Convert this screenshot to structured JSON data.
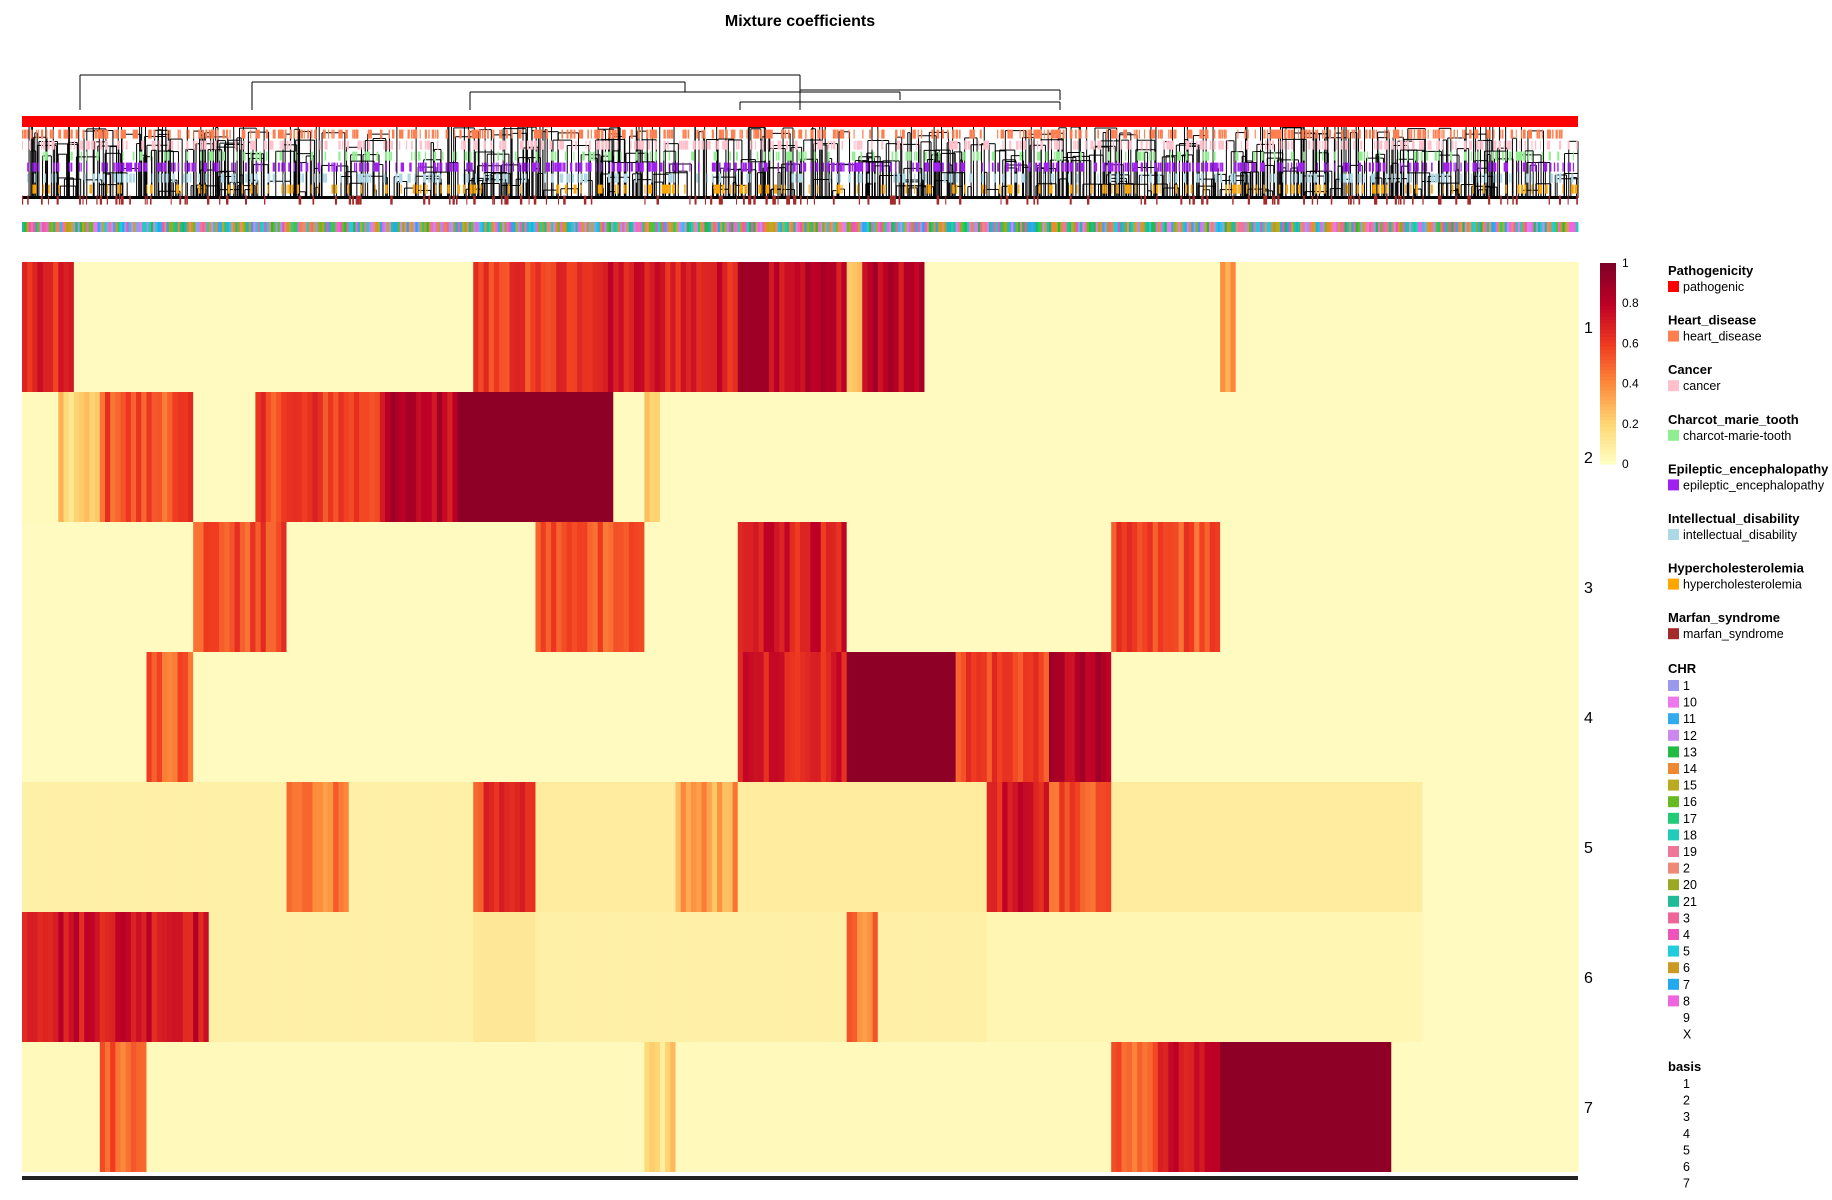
{
  "chart_data": {
    "type": "heatmap",
    "title": "Mixture coefficients",
    "colorscale": {
      "min": 0,
      "max": 1,
      "ticks": [
        "0",
        "0.2",
        "0.4",
        "0.6",
        "0.8",
        "1"
      ],
      "colors": [
        "#ffffc8",
        "#fed976",
        "#fd8d3c",
        "#f03b20",
        "#bd0026",
        "#800026"
      ]
    },
    "rows": [
      "1",
      "2",
      "3",
      "4",
      "5",
      "6",
      "7"
    ],
    "row_profiles": [
      [
        [
          0.0,
          0.035,
          0.65
        ],
        [
          0.035,
          0.9,
          0.02
        ],
        [
          0.29,
          0.36,
          0.6
        ],
        [
          0.36,
          0.46,
          0.7
        ],
        [
          0.46,
          0.48,
          0.9
        ],
        [
          0.48,
          0.58,
          0.8
        ],
        [
          0.53,
          0.54,
          0.25
        ],
        [
          0.58,
          0.9,
          0.02
        ],
        [
          0.77,
          0.78,
          0.35
        ]
      ],
      [
        [
          0.0,
          0.025,
          0.03
        ],
        [
          0.025,
          0.05,
          0.2
        ],
        [
          0.05,
          0.11,
          0.55
        ],
        [
          0.11,
          0.15,
          0.02
        ],
        [
          0.15,
          0.23,
          0.6
        ],
        [
          0.23,
          0.28,
          0.8
        ],
        [
          0.28,
          0.38,
          0.95
        ],
        [
          0.38,
          0.42,
          0.02
        ],
        [
          0.4,
          0.41,
          0.3
        ],
        [
          0.42,
          0.9,
          0.02
        ]
      ],
      [
        [
          0.0,
          0.11,
          0.02
        ],
        [
          0.11,
          0.17,
          0.55
        ],
        [
          0.17,
          0.3,
          0.02
        ],
        [
          0.33,
          0.4,
          0.55
        ],
        [
          0.4,
          0.46,
          0.02
        ],
        [
          0.46,
          0.53,
          0.7
        ],
        [
          0.53,
          0.7,
          0.02
        ],
        [
          0.7,
          0.77,
          0.55
        ],
        [
          0.77,
          0.9,
          0.02
        ]
      ],
      [
        [
          0.0,
          0.08,
          0.02
        ],
        [
          0.08,
          0.11,
          0.5
        ],
        [
          0.11,
          0.46,
          0.02
        ],
        [
          0.46,
          0.53,
          0.7
        ],
        [
          0.53,
          0.6,
          0.95
        ],
        [
          0.6,
          0.66,
          0.6
        ],
        [
          0.66,
          0.7,
          0.8
        ],
        [
          0.7,
          0.9,
          0.02
        ]
      ],
      [
        [
          0.0,
          0.17,
          0.08
        ],
        [
          0.17,
          0.21,
          0.45
        ],
        [
          0.21,
          0.29,
          0.08
        ],
        [
          0.29,
          0.33,
          0.6
        ],
        [
          0.33,
          0.42,
          0.1
        ],
        [
          0.42,
          0.46,
          0.35
        ],
        [
          0.46,
          0.62,
          0.1
        ],
        [
          0.62,
          0.66,
          0.7
        ],
        [
          0.66,
          0.7,
          0.55
        ],
        [
          0.7,
          0.9,
          0.1
        ]
      ],
      [
        [
          0.0,
          0.12,
          0.75
        ],
        [
          0.12,
          0.29,
          0.08
        ],
        [
          0.29,
          0.33,
          0.12
        ],
        [
          0.33,
          0.62,
          0.08
        ],
        [
          0.53,
          0.55,
          0.45
        ],
        [
          0.62,
          0.9,
          0.05
        ]
      ],
      [
        [
          0.0,
          0.05,
          0.03
        ],
        [
          0.05,
          0.08,
          0.5
        ],
        [
          0.08,
          0.4,
          0.03
        ],
        [
          0.4,
          0.42,
          0.2
        ],
        [
          0.42,
          0.7,
          0.03
        ],
        [
          0.7,
          0.73,
          0.5
        ],
        [
          0.73,
          0.77,
          0.7
        ],
        [
          0.77,
          0.88,
          0.95
        ]
      ]
    ],
    "annotation_tracks": [
      {
        "name": "Pathogenicity",
        "color": "#ff0000",
        "density": 1.0
      },
      {
        "name": "Heart_disease",
        "color": "#ff7f50",
        "density": 0.45
      },
      {
        "name": "Cancer",
        "color": "#ffc0cb",
        "density": 0.3
      },
      {
        "name": "Charcot_marie_tooth",
        "color": "#90ee90",
        "density": 0.2
      },
      {
        "name": "Epileptic_encephalopathy",
        "color": "#a020f0",
        "density": 0.4
      },
      {
        "name": "Intellectual_disability",
        "color": "#add8e6",
        "density": 0.25
      },
      {
        "name": "Hypercholesterolemia",
        "color": "#ffa500",
        "density": 0.2
      },
      {
        "name": "Marfan_syndrome",
        "color": "#a52a2a",
        "density": 0.15
      }
    ],
    "legends": [
      {
        "title": "Pathogenicity",
        "items": [
          {
            "label": "pathogenic",
            "color": "#ff0000"
          }
        ]
      },
      {
        "title": "Heart_disease",
        "items": [
          {
            "label": "heart_disease",
            "color": "#ff7f50"
          }
        ]
      },
      {
        "title": "Cancer",
        "items": [
          {
            "label": "cancer",
            "color": "#ffc0cb"
          }
        ]
      },
      {
        "title": "Charcot_marie_tooth",
        "items": [
          {
            "label": "charcot-marie-tooth",
            "color": "#90ee90"
          }
        ]
      },
      {
        "title": "Epileptic_encephalopathy",
        "items": [
          {
            "label": "epileptic_encephalopathy",
            "color": "#a020f0"
          }
        ]
      },
      {
        "title": "Intellectual_disability",
        "items": [
          {
            "label": "intellectual_disability",
            "color": "#add8e6"
          }
        ]
      },
      {
        "title": "Hypercholesterolemia",
        "items": [
          {
            "label": "hypercholesterolemia",
            "color": "#ffa500"
          }
        ]
      },
      {
        "title": "Marfan_syndrome",
        "items": [
          {
            "label": "marfan_syndrome",
            "color": "#a52a2a"
          }
        ]
      }
    ],
    "chr_legend": {
      "title": "CHR",
      "items": [
        {
          "label": "1",
          "color": "#9999ee"
        },
        {
          "label": "10",
          "color": "#ee77ee"
        },
        {
          "label": "11",
          "color": "#33aaee"
        },
        {
          "label": "12",
          "color": "#cc88ee"
        },
        {
          "label": "13",
          "color": "#22bb44"
        },
        {
          "label": "14",
          "color": "#ee8833"
        },
        {
          "label": "15",
          "color": "#bbaa22"
        },
        {
          "label": "16",
          "color": "#66bb22"
        },
        {
          "label": "17",
          "color": "#22cc77"
        },
        {
          "label": "18",
          "color": "#22ccbb"
        },
        {
          "label": "19",
          "color": "#ee7799"
        },
        {
          "label": "2",
          "color": "#ee8877"
        },
        {
          "label": "20",
          "color": "#99aa22"
        },
        {
          "label": "21",
          "color": "#22bb99"
        },
        {
          "label": "3",
          "color": "#ee6699"
        },
        {
          "label": "4",
          "color": "#ee55bb"
        },
        {
          "label": "5",
          "color": "#22ccdd"
        },
        {
          "label": "6",
          "color": "#cc9922"
        },
        {
          "label": "7",
          "color": "#22aaee"
        },
        {
          "label": "8",
          "color": "#ee66dd"
        },
        {
          "label": "9",
          "color": ""
        },
        {
          "label": "X",
          "color": ""
        }
      ]
    },
    "basis_legend": {
      "title": "basis",
      "items": [
        {
          "label": "1",
          "color": ""
        },
        {
          "label": "2",
          "color": ""
        },
        {
          "label": "3",
          "color": ""
        },
        {
          "label": "4",
          "color": ""
        },
        {
          "label": "5",
          "color": ""
        },
        {
          "label": "6",
          "color": ""
        },
        {
          "label": "7",
          "color": ""
        }
      ]
    }
  }
}
